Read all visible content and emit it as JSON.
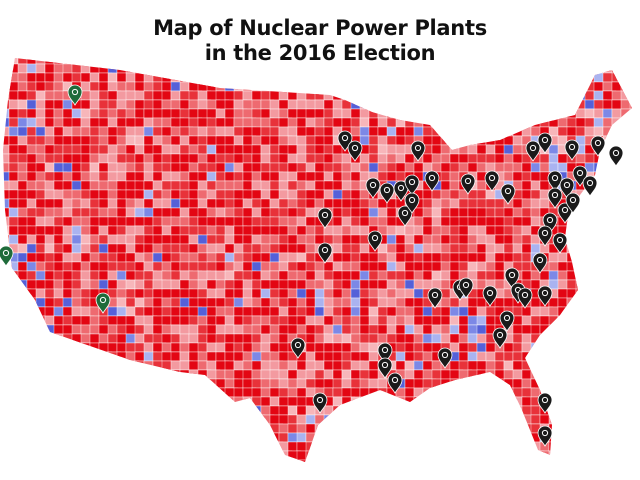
{
  "title": {
    "line1": "Map of Nuclear Power Plants",
    "line2": "in the 2016 Election"
  }
}
